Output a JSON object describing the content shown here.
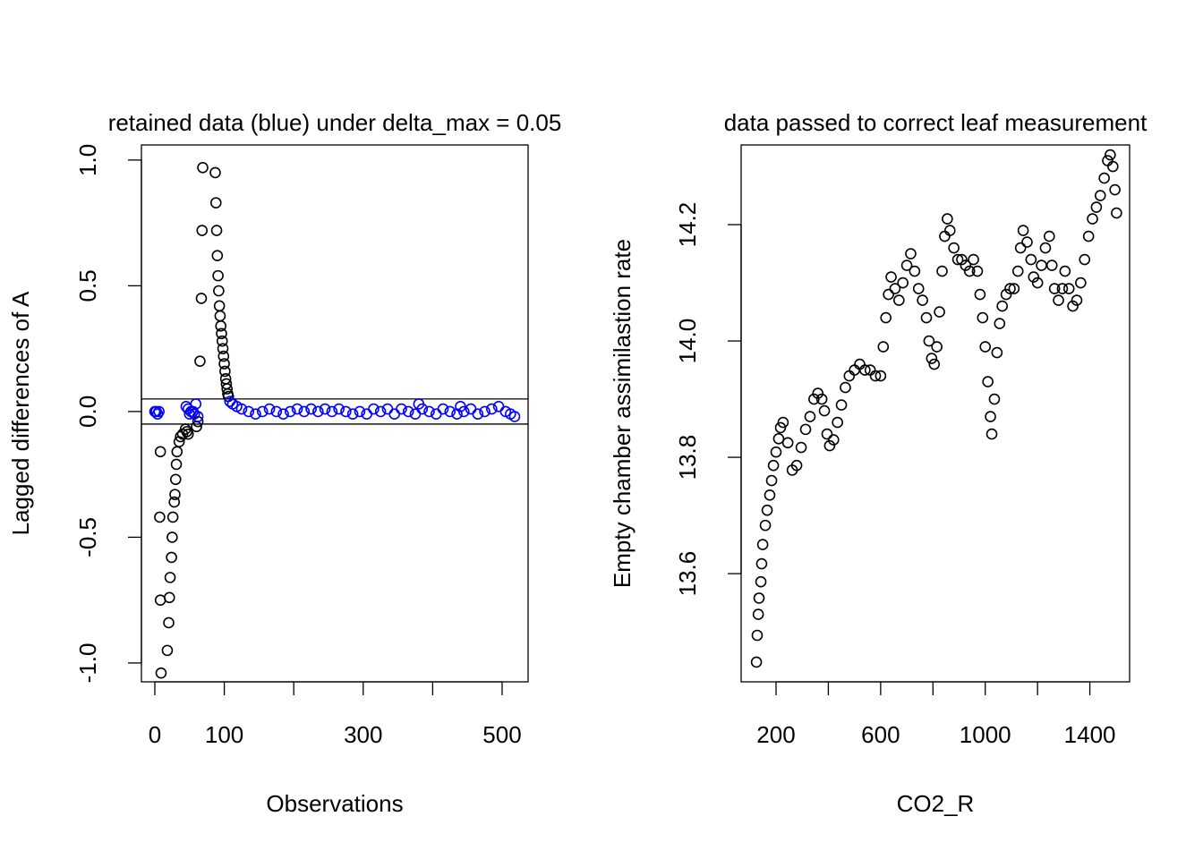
{
  "chart_data": [
    {
      "type": "scatter",
      "title": "retained data (blue) under delta_max =  0.05",
      "xlabel": "Observations",
      "ylabel": "Lagged differences of A",
      "xlim": [
        -19.3,
        537.4
      ],
      "ylim": [
        -1.075,
        1.06
      ],
      "xticks": [
        0,
        100,
        {
          "value": 200,
          "label": null
        },
        300,
        {
          "value": 400,
          "label": null
        },
        500
      ],
      "yticks": [
        {
          "value": -1,
          "label": "-1.0"
        },
        -0.5,
        {
          "value": 0,
          "label": "0.0"
        },
        0.5,
        {
          "value": 1,
          "label": "1.0"
        }
      ],
      "hlines": [
        0.05,
        -0.05
      ],
      "series": [
        {
          "color": "#000000",
          "x": [
            8,
            7,
            8,
            9,
            18,
            20,
            21,
            22,
            24,
            25,
            26,
            28,
            29,
            30,
            31,
            32,
            35,
            37,
            40,
            44,
            46,
            48,
            60,
            62,
            65,
            67,
            68,
            69,
            87,
            88,
            89,
            90,
            91,
            92,
            93,
            94,
            95,
            96,
            97,
            98,
            99,
            100,
            101,
            102,
            103,
            104,
            105,
            106
          ],
          "y": [
            -0.16,
            -0.42,
            -0.75,
            -1.04,
            -0.95,
            -0.84,
            -0.74,
            -0.66,
            -0.58,
            -0.5,
            -0.42,
            -0.36,
            -0.33,
            -0.27,
            -0.21,
            -0.16,
            -0.12,
            -0.1,
            -0.09,
            -0.07,
            -0.08,
            -0.09,
            -0.06,
            -0.04,
            0.2,
            0.45,
            0.72,
            0.97,
            0.95,
            0.83,
            0.72,
            0.62,
            0.54,
            0.48,
            0.42,
            0.38,
            0.34,
            0.31,
            0.28,
            0.25,
            0.22,
            0.19,
            0.16,
            0.13,
            0.11,
            0.09,
            0.07,
            0.06
          ]
        },
        {
          "color": "#0000ff",
          "x": [
            0,
            2,
            4,
            6,
            45,
            48,
            50,
            52,
            55,
            57,
            59,
            62,
            108,
            112,
            118,
            125,
            135,
            145,
            155,
            165,
            175,
            185,
            195,
            205,
            215,
            225,
            235,
            245,
            255,
            265,
            275,
            285,
            295,
            305,
            315,
            325,
            335,
            345,
            355,
            365,
            375,
            380,
            385,
            395,
            405,
            415,
            425,
            435,
            440,
            445,
            455,
            465,
            475,
            485,
            495,
            505,
            512,
            518
          ],
          "y": [
            0,
            0,
            -0.01,
            0,
            0.02,
            0.01,
            -0.01,
            0,
            0,
            -0.01,
            0.03,
            -0.02,
            0.04,
            0.03,
            0.02,
            0.01,
            0,
            -0.01,
            0,
            0.01,
            0,
            -0.01,
            0,
            0.01,
            0,
            0.01,
            0,
            0.01,
            0,
            0.01,
            0,
            -0.01,
            0,
            -0.01,
            0.01,
            0,
            0.01,
            -0.01,
            0.01,
            0,
            -0.01,
            0.03,
            0.01,
            0,
            -0.01,
            0.01,
            0,
            -0.01,
            0.02,
            0,
            0.01,
            -0.01,
            0,
            0.01,
            0.02,
            0,
            -0.01,
            -0.02
          ]
        }
      ]
    },
    {
      "type": "scatter",
      "title": "data passed to correct leaf measurement",
      "xlabel": "CO2_R",
      "ylabel": "Empty chamber assimilastion rate",
      "xlim": [
        66.5,
        1552
      ],
      "ylim": [
        13.414,
        14.337
      ],
      "xticks": [
        200,
        {
          "value": 400,
          "label": null
        },
        600,
        {
          "value": 800,
          "label": null
        },
        1000,
        {
          "value": 1200,
          "label": null
        },
        1400
      ],
      "yticks": [
        13.6,
        13.8,
        {
          "value": 14,
          "label": "14.0"
        },
        14.2
      ],
      "series": [
        {
          "color": "#000000",
          "x": [
            125,
            128,
            132,
            135,
            142,
            145,
            149,
            159,
            166,
            176,
            183,
            190,
            200,
            210,
            217,
            227,
            245,
            262,
            279,
            296,
            313,
            330,
            345,
            360,
            375,
            385,
            395,
            405,
            420,
            435,
            450,
            465,
            480,
            500,
            520,
            540,
            560,
            580,
            600,
            610,
            620,
            630,
            640,
            655,
            670,
            685,
            700,
            715,
            730,
            745,
            760,
            775,
            785,
            795,
            805,
            815,
            825,
            835,
            845,
            855,
            865,
            880,
            895,
            910,
            925,
            940,
            955,
            970,
            980,
            990,
            1000,
            1010,
            1020,
            1025,
            1035,
            1045,
            1055,
            1065,
            1080,
            1095,
            1110,
            1125,
            1135,
            1145,
            1160,
            1175,
            1185,
            1200,
            1215,
            1230,
            1245,
            1255,
            1265,
            1280,
            1295,
            1305,
            1320,
            1335,
            1350,
            1365,
            1380,
            1395,
            1410,
            1425,
            1440,
            1455,
            1468,
            1478,
            1488,
            1496,
            1502
          ],
          "y": [
            13.448,
            13.494,
            13.53,
            13.558,
            13.586,
            13.617,
            13.65,
            13.683,
            13.709,
            13.735,
            13.76,
            13.786,
            13.809,
            13.832,
            13.851,
            13.86,
            13.825,
            13.778,
            13.786,
            13.817,
            13.848,
            13.87,
            13.9,
            13.91,
            13.9,
            13.88,
            13.84,
            13.82,
            13.83,
            13.86,
            13.89,
            13.92,
            13.94,
            13.95,
            13.96,
            13.95,
            13.95,
            13.94,
            13.94,
            13.99,
            14.04,
            14.08,
            14.11,
            14.09,
            14.07,
            14.1,
            14.13,
            14.15,
            14.12,
            14.09,
            14.07,
            14.04,
            14.0,
            13.97,
            13.96,
            13.99,
            14.05,
            14.12,
            14.18,
            14.21,
            14.19,
            14.16,
            14.14,
            14.14,
            14.13,
            14.12,
            14.14,
            14.12,
            14.08,
            14.04,
            13.99,
            13.93,
            13.87,
            13.84,
            13.9,
            13.98,
            14.03,
            14.06,
            14.08,
            14.09,
            14.09,
            14.12,
            14.16,
            14.19,
            14.17,
            14.14,
            14.11,
            14.1,
            14.13,
            14.16,
            14.18,
            14.13,
            14.09,
            14.07,
            14.09,
            14.12,
            14.09,
            14.06,
            14.07,
            14.1,
            14.14,
            14.18,
            14.21,
            14.23,
            14.25,
            14.28,
            14.31,
            14.32,
            14.3,
            14.26,
            14.22
          ]
        }
      ]
    }
  ]
}
